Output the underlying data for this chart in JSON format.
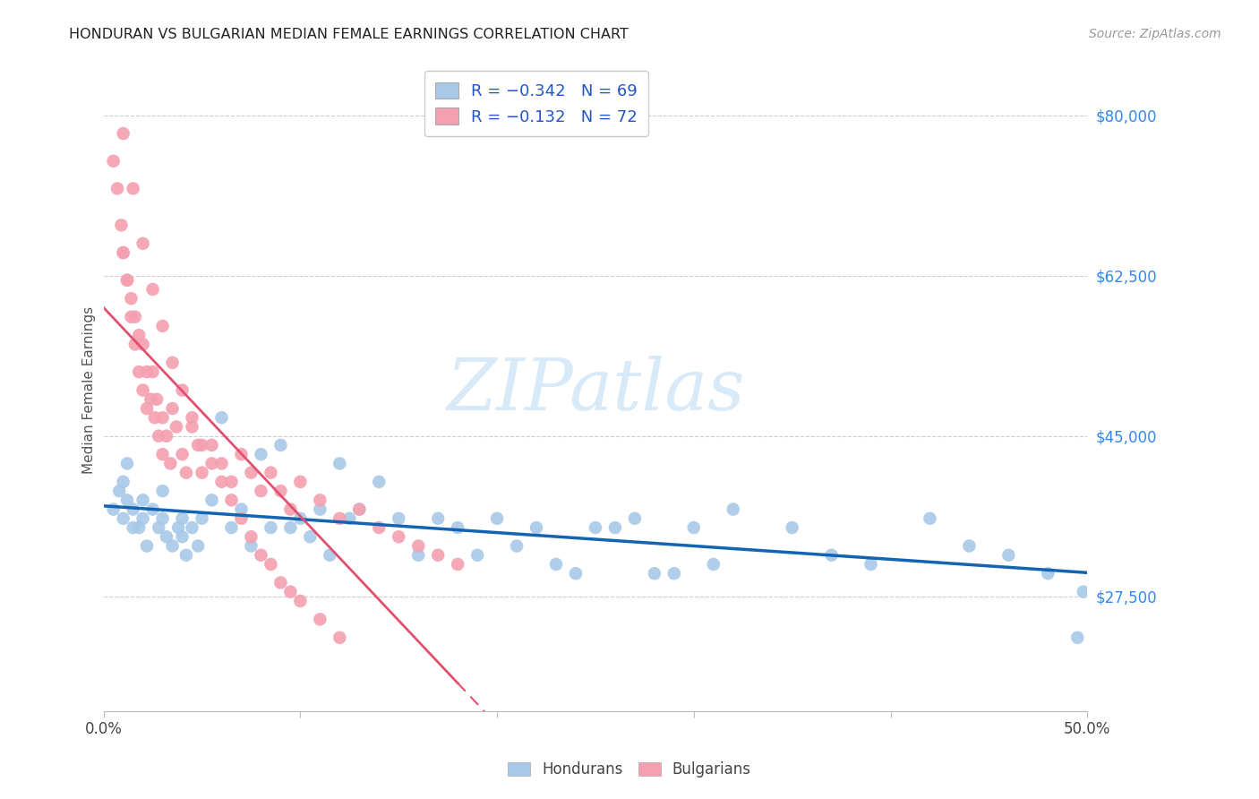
{
  "title": "HONDURAN VS BULGARIAN MEDIAN FEMALE EARNINGS CORRELATION CHART",
  "source": "Source: ZipAtlas.com",
  "ylabel": "Median Female Earnings",
  "ytick_labels": [
    "$27,500",
    "$45,000",
    "$62,500",
    "$80,000"
  ],
  "ytick_values": [
    27500,
    45000,
    62500,
    80000
  ],
  "ylim": [
    15000,
    85000
  ],
  "xlim": [
    0.0,
    0.5
  ],
  "legend_label_hondurans": "Hondurans",
  "legend_label_bulgarians": "Bulgarians",
  "legend_r_honduran": "R = −0.342   N = 69",
  "legend_r_bulgarian": "R = −0.132   N = 72",
  "honduran_scatter_color": "#a8c8e8",
  "bulgarian_scatter_color": "#f4a0b0",
  "honduran_trend_color": "#1464b4",
  "bulgarian_trend_color": "#e05070",
  "watermark_color": "#d8eaf8",
  "background_color": "#ffffff",
  "grid_color": "#cccccc",
  "hondurans_x": [
    0.005,
    0.008,
    0.01,
    0.012,
    0.015,
    0.01,
    0.012,
    0.015,
    0.018,
    0.02,
    0.02,
    0.022,
    0.025,
    0.028,
    0.03,
    0.03,
    0.032,
    0.035,
    0.038,
    0.04,
    0.04,
    0.042,
    0.045,
    0.048,
    0.05,
    0.055,
    0.06,
    0.065,
    0.07,
    0.075,
    0.08,
    0.085,
    0.09,
    0.095,
    0.1,
    0.105,
    0.11,
    0.115,
    0.12,
    0.125,
    0.13,
    0.14,
    0.15,
    0.16,
    0.17,
    0.18,
    0.19,
    0.2,
    0.21,
    0.22,
    0.23,
    0.24,
    0.25,
    0.26,
    0.27,
    0.28,
    0.29,
    0.3,
    0.31,
    0.32,
    0.35,
    0.37,
    0.39,
    0.42,
    0.44,
    0.46,
    0.48,
    0.495,
    0.498
  ],
  "hondurans_y": [
    37000,
    39000,
    36000,
    38000,
    35000,
    40000,
    42000,
    37000,
    35000,
    38000,
    36000,
    33000,
    37000,
    35000,
    39000,
    36000,
    34000,
    33000,
    35000,
    36000,
    34000,
    32000,
    35000,
    33000,
    36000,
    38000,
    47000,
    35000,
    37000,
    33000,
    43000,
    35000,
    44000,
    35000,
    36000,
    34000,
    37000,
    32000,
    42000,
    36000,
    37000,
    40000,
    36000,
    32000,
    36000,
    35000,
    32000,
    36000,
    33000,
    35000,
    31000,
    30000,
    35000,
    35000,
    36000,
    30000,
    30000,
    35000,
    31000,
    37000,
    35000,
    32000,
    31000,
    36000,
    33000,
    32000,
    30000,
    23000,
    28000
  ],
  "bulgarians_x": [
    0.005,
    0.007,
    0.009,
    0.01,
    0.012,
    0.014,
    0.016,
    0.018,
    0.01,
    0.012,
    0.014,
    0.016,
    0.018,
    0.02,
    0.022,
    0.02,
    0.022,
    0.024,
    0.026,
    0.028,
    0.03,
    0.025,
    0.027,
    0.03,
    0.032,
    0.034,
    0.035,
    0.037,
    0.04,
    0.042,
    0.045,
    0.048,
    0.05,
    0.055,
    0.06,
    0.065,
    0.07,
    0.075,
    0.08,
    0.085,
    0.09,
    0.095,
    0.1,
    0.11,
    0.12,
    0.13,
    0.14,
    0.15,
    0.16,
    0.17,
    0.18,
    0.01,
    0.015,
    0.02,
    0.025,
    0.03,
    0.035,
    0.04,
    0.045,
    0.05,
    0.055,
    0.06,
    0.065,
    0.07,
    0.075,
    0.08,
    0.085,
    0.09,
    0.095,
    0.1,
    0.11,
    0.12
  ],
  "bulgarians_y": [
    75000,
    72000,
    68000,
    65000,
    62000,
    60000,
    58000,
    56000,
    65000,
    62000,
    58000,
    55000,
    52000,
    50000,
    48000,
    55000,
    52000,
    49000,
    47000,
    45000,
    43000,
    52000,
    49000,
    47000,
    45000,
    42000,
    48000,
    46000,
    43000,
    41000,
    46000,
    44000,
    41000,
    44000,
    42000,
    40000,
    43000,
    41000,
    39000,
    41000,
    39000,
    37000,
    40000,
    38000,
    36000,
    37000,
    35000,
    34000,
    33000,
    32000,
    31000,
    78000,
    72000,
    66000,
    61000,
    57000,
    53000,
    50000,
    47000,
    44000,
    42000,
    40000,
    38000,
    36000,
    34000,
    32000,
    31000,
    29000,
    28000,
    27000,
    25000,
    23000
  ]
}
